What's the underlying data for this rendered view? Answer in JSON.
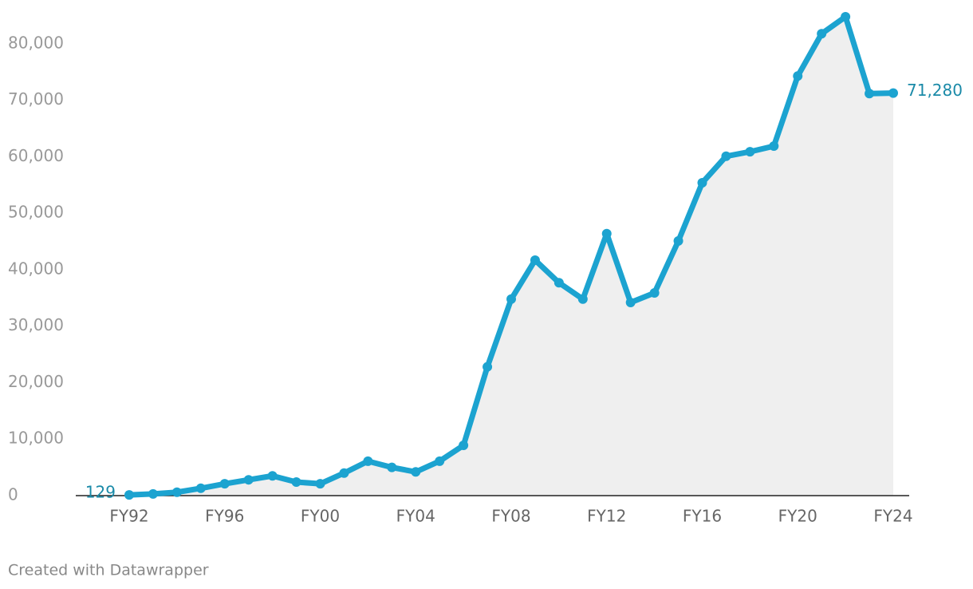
{
  "chart_data": {
    "type": "line",
    "categories": [
      "FY92",
      null,
      null,
      null,
      "FY96",
      null,
      null,
      null,
      "FY00",
      null,
      null,
      null,
      "FY04",
      null,
      null,
      null,
      "FY08",
      null,
      null,
      null,
      "FY12",
      null,
      null,
      null,
      "FY16",
      null,
      null,
      null,
      "FY20",
      null,
      null,
      null,
      "FY24"
    ],
    "series": [
      {
        "color": "#1ca3d0",
        "values": [
          129,
          300,
          600,
          1300,
          2100,
          2800,
          3500,
          2400,
          2100,
          4000,
          6100,
          5000,
          4200,
          6100,
          8900,
          22800,
          34800,
          41700,
          37700,
          34800,
          46400,
          34200,
          35900,
          45100,
          55400,
          60100,
          60900,
          61900,
          74300,
          81800,
          84800,
          71200,
          71280
        ],
        "value_labels": [
          "129",
          null,
          null,
          null,
          null,
          null,
          null,
          null,
          null,
          null,
          null,
          null,
          null,
          null,
          null,
          null,
          null,
          null,
          null,
          null,
          null,
          null,
          null,
          null,
          null,
          null,
          null,
          null,
          null,
          null,
          null,
          null,
          "71,280"
        ]
      }
    ],
    "ylim": [
      0,
      85000
    ],
    "yticks": [
      0,
      {
        "value": 10000,
        "label": "10,000"
      },
      {
        "value": 20000,
        "label": "20,000"
      },
      {
        "value": 30000,
        "label": "30,000"
      },
      {
        "value": 40000,
        "label": "40,000"
      },
      {
        "value": 50000,
        "label": "50,000"
      },
      {
        "value": 60000,
        "label": "60,000"
      },
      {
        "value": 70000,
        "label": "70,000"
      },
      {
        "value": 80000,
        "label": "80,000"
      }
    ],
    "area_color": "#efefef",
    "label_color": "#1a8aa8",
    "footer": "Created with Datawrapper"
  }
}
